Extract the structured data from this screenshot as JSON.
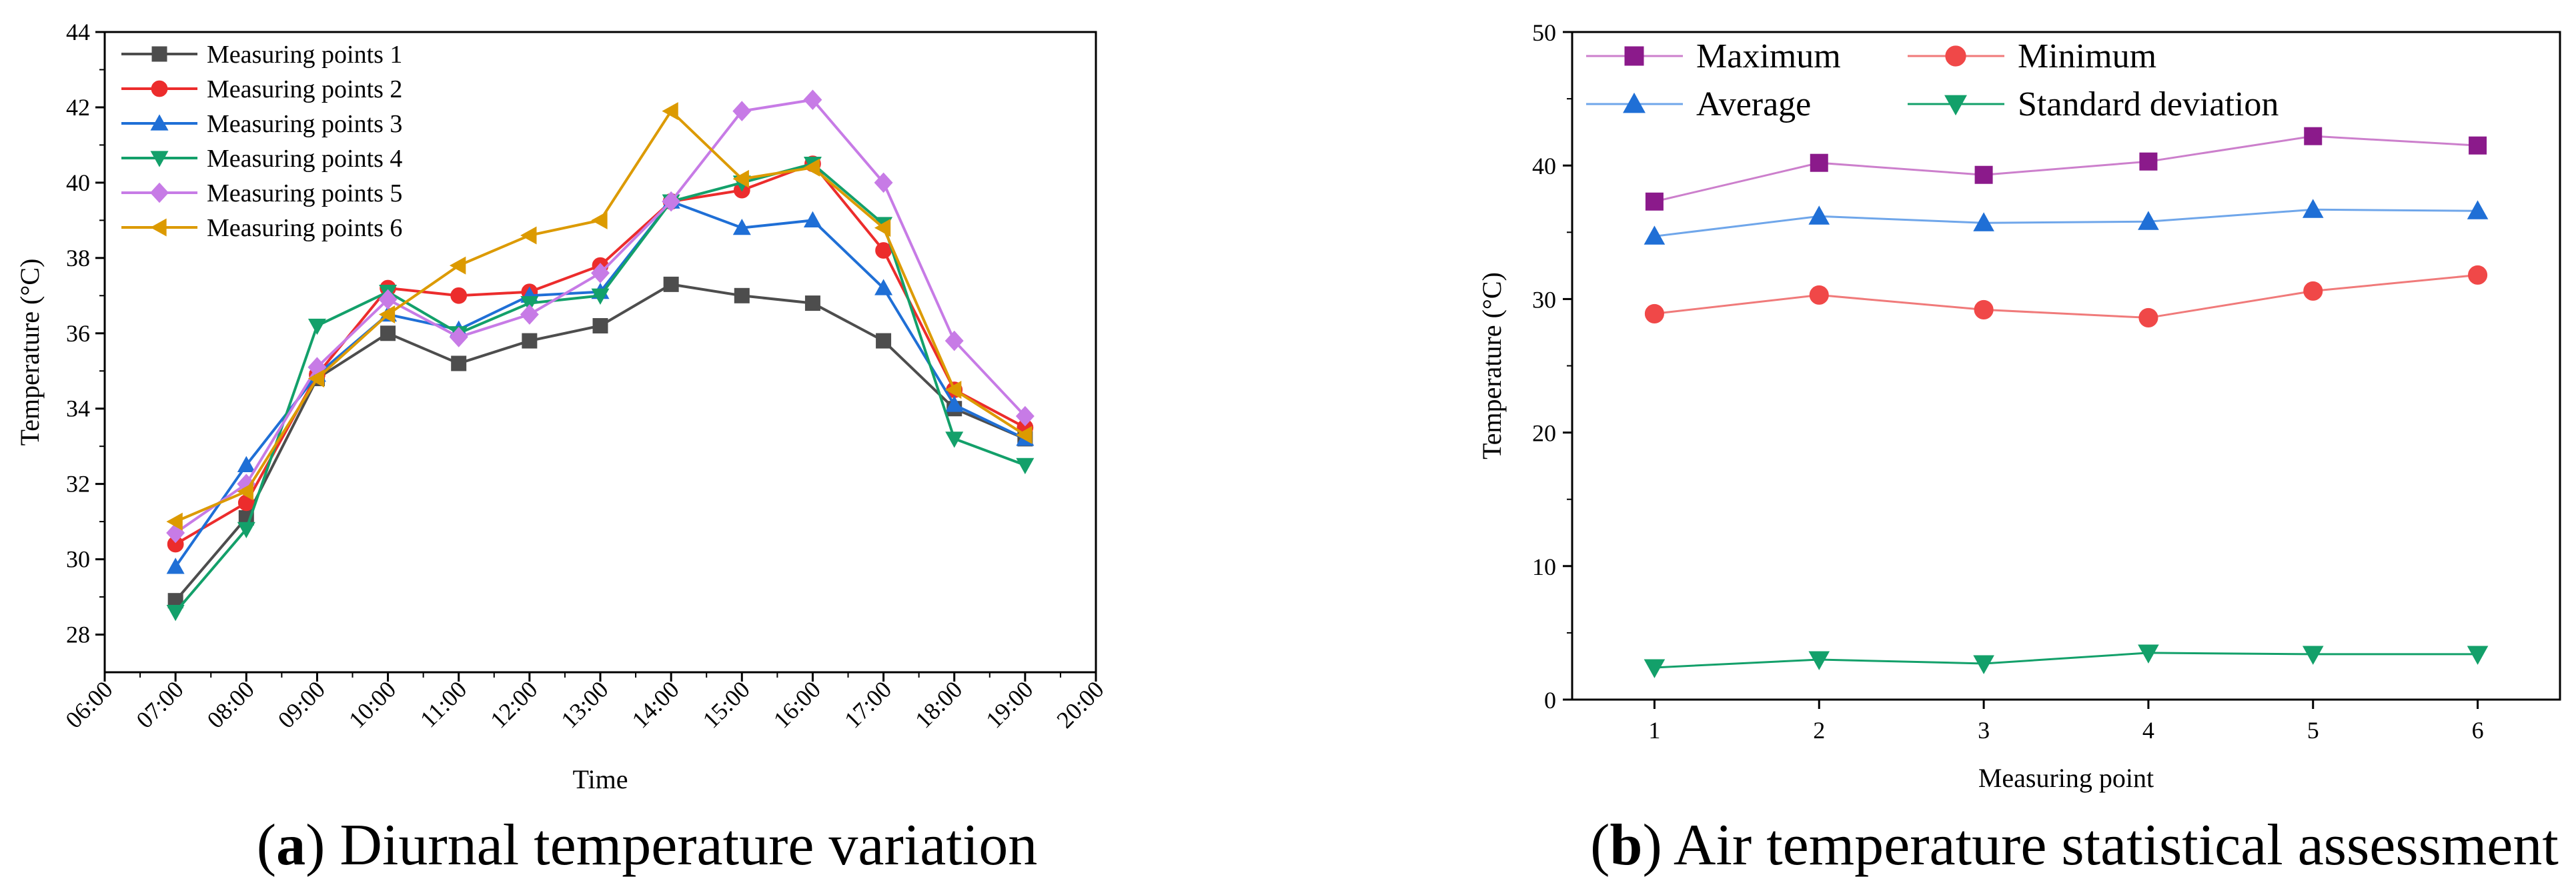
{
  "chart_data": [
    {
      "type": "line",
      "caption_letter": "a",
      "caption_text": "Diurnal temperature variation",
      "xlabel": "Time",
      "ylabel": "Temperature (°C)",
      "x_ticks": [
        "06:00",
        "07:00",
        "08:00",
        "09:00",
        "10:00",
        "11:00",
        "12:00",
        "13:00",
        "14:00",
        "15:00",
        "16:00",
        "17:00",
        "18:00",
        "19:00",
        "20:00"
      ],
      "x": [
        "07:00",
        "08:00",
        "09:00",
        "10:00",
        "11:00",
        "12:00",
        "13:00",
        "14:00",
        "15:00",
        "16:00",
        "17:00",
        "18:00",
        "19:00"
      ],
      "ylim": [
        27,
        44
      ],
      "y_ticks": [
        28,
        30,
        32,
        34,
        36,
        38,
        40,
        42,
        44
      ],
      "legend_position": "top-left",
      "grid": false,
      "series": [
        {
          "name": "Measuring points 1",
          "color": "#4d4d4d",
          "marker": "square",
          "values": [
            28.9,
            31.1,
            34.8,
            36.0,
            35.2,
            35.8,
            36.2,
            37.3,
            37.0,
            36.8,
            35.8,
            34.0,
            33.2
          ]
        },
        {
          "name": "Measuring points 2",
          "color": "#ec2c2c",
          "marker": "circle",
          "values": [
            30.4,
            31.5,
            34.9,
            37.2,
            37.0,
            37.1,
            37.8,
            39.5,
            39.8,
            40.5,
            38.2,
            34.5,
            33.5
          ]
        },
        {
          "name": "Measuring points 3",
          "color": "#1f6fd6",
          "marker": "triangle-up",
          "values": [
            29.8,
            32.5,
            34.9,
            36.5,
            36.1,
            37.0,
            37.1,
            39.5,
            38.8,
            39.0,
            37.2,
            34.1,
            33.2
          ]
        },
        {
          "name": "Measuring points 4",
          "color": "#13a06a",
          "marker": "triangle-down",
          "values": [
            28.6,
            30.8,
            36.2,
            37.1,
            36.0,
            36.8,
            37.0,
            39.5,
            40.0,
            40.5,
            38.9,
            33.2,
            32.5
          ]
        },
        {
          "name": "Measuring points 5",
          "color": "#c77be6",
          "marker": "diamond",
          "values": [
            30.7,
            32.0,
            35.1,
            36.9,
            35.9,
            36.5,
            37.6,
            39.5,
            41.9,
            42.2,
            40.0,
            35.8,
            33.8
          ]
        },
        {
          "name": "Measuring points 6",
          "color": "#dc9a00",
          "marker": "triangle-left",
          "values": [
            31.0,
            31.8,
            34.8,
            36.5,
            37.8,
            38.6,
            39.0,
            41.9,
            40.1,
            40.4,
            38.8,
            34.5,
            33.3
          ]
        }
      ]
    },
    {
      "type": "line",
      "caption_letter": "b",
      "caption_text": "Air temperature statistical assessment",
      "xlabel": "Measuring point",
      "ylabel": "Temperature (°C)",
      "categories": [
        "1",
        "2",
        "3",
        "4",
        "5",
        "6"
      ],
      "xlim": [
        0.5,
        6.5
      ],
      "ylim": [
        0,
        50
      ],
      "y_ticks": [
        0,
        10,
        20,
        30,
        40,
        50
      ],
      "legend_position": "top",
      "grid": false,
      "series": [
        {
          "name": "Maximum",
          "color": "#8b1a8b",
          "line_color": "#cc7fcc",
          "marker": "square",
          "values": [
            37.3,
            40.2,
            39.3,
            40.3,
            42.2,
            41.5
          ]
        },
        {
          "name": "Minimum",
          "color": "#f04848",
          "line_color": "#f07a7a",
          "marker": "circle",
          "values": [
            28.9,
            30.3,
            29.2,
            28.6,
            30.6,
            31.8
          ]
        },
        {
          "name": "Average",
          "color": "#1f6fd6",
          "line_color": "#6fa6ea",
          "marker": "triangle-up",
          "values": [
            34.7,
            36.2,
            35.7,
            35.8,
            36.7,
            36.6
          ]
        },
        {
          "name": "Standard deviation",
          "color": "#13a06a",
          "line_color": "#13a06a",
          "marker": "triangle-down",
          "values": [
            2.4,
            3.0,
            2.7,
            3.5,
            3.4,
            3.4
          ]
        }
      ]
    }
  ]
}
